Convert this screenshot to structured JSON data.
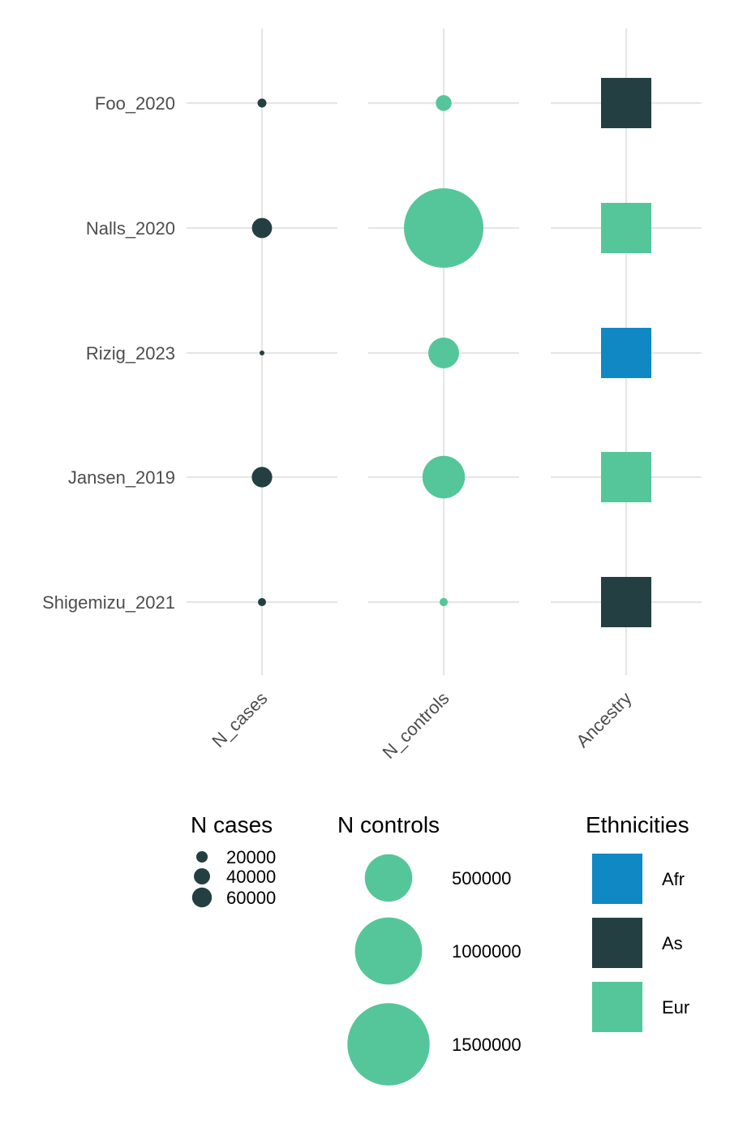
{
  "chart_data": {
    "type": "scatter",
    "rows": [
      "Foo_2020",
      "Nalls_2020",
      "Rizig_2023",
      "Jansen_2019",
      "Shigemizu_2021"
    ],
    "columns": [
      "N_cases",
      "N_controls",
      "Ancestry"
    ],
    "n_cases": [
      12000,
      62000,
      3000,
      64000,
      10000
    ],
    "n_controls": [
      55000,
      1400000,
      210000,
      400000,
      15000
    ],
    "ancestry": [
      "As",
      "Eur",
      "Afr",
      "Eur",
      "As"
    ],
    "legends": {
      "cases": {
        "title": "N cases",
        "values": [
          20000,
          40000,
          60000
        ],
        "labels": [
          "20000",
          "40000",
          "60000"
        ]
      },
      "controls": {
        "title": "N controls",
        "values": [
          500000,
          1000000,
          1500000
        ],
        "labels": [
          "500000",
          "1000000",
          "1500000"
        ]
      },
      "ethnicities": {
        "title": "Ethnicities",
        "labels": [
          "Afr",
          "As",
          "Eur"
        ]
      }
    }
  },
  "colors": {
    "cases": "#243f41",
    "controls": "#55c69a",
    "Afr": "#0f88c4",
    "As": "#243f41",
    "Eur": "#55c69a",
    "grid": "#e6e6e6"
  }
}
